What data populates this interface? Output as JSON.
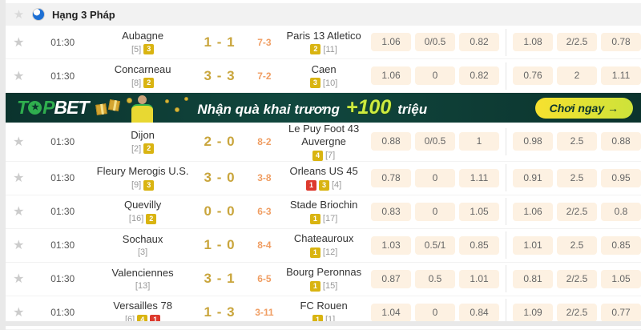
{
  "header": {
    "title": "Hạng 3 Pháp"
  },
  "banner": {
    "logo_t": "T",
    "logo_p": "P",
    "logo_bet": "BET",
    "logo_star": "★",
    "message": "Nhận quà khai trương",
    "highlight": "+100",
    "unit": "triệu",
    "cta": "Chơi ngay →"
  },
  "colors": {
    "score": "#c9a53c",
    "corner": "#f09e63",
    "odd_bg": "#fdf1e2",
    "badge_yellow": "#d9b411",
    "badge_red": "#dd3a2e",
    "banner_bg": "#0d3a33",
    "banner_green": "#2fae4e",
    "banner_lime": "#cdeb3f"
  },
  "matches": [
    {
      "time": "01:30",
      "home": {
        "name": "Aubagne",
        "sub": [
          {
            "type": "rank",
            "text": "[5]"
          },
          {
            "type": "badge",
            "color": "yellow",
            "text": "3"
          }
        ]
      },
      "score": "1 - 1",
      "corner": "7-3",
      "away": {
        "name": "Paris 13 Atletico",
        "sub": [
          {
            "type": "badge",
            "color": "yellow",
            "text": "2"
          },
          {
            "type": "rank",
            "text": "[11]"
          }
        ]
      },
      "odds": [
        "1.06",
        "0/0.5",
        "0.82",
        "1.08",
        "2/2.5",
        "0.78"
      ]
    },
    {
      "time": "01:30",
      "home": {
        "name": "Concarneau",
        "sub": [
          {
            "type": "rank",
            "text": "[8]"
          },
          {
            "type": "badge",
            "color": "yellow",
            "text": "2"
          }
        ]
      },
      "score": "3 - 3",
      "corner": "7-2",
      "away": {
        "name": "Caen",
        "sub": [
          {
            "type": "badge",
            "color": "yellow",
            "text": "3"
          },
          {
            "type": "rank",
            "text": "[10]"
          }
        ]
      },
      "odds": [
        "1.06",
        "0",
        "0.82",
        "0.76",
        "2",
        "1.11"
      ]
    },
    {
      "time": "01:30",
      "home": {
        "name": "Dijon",
        "sub": [
          {
            "type": "rank",
            "text": "[2]"
          },
          {
            "type": "badge",
            "color": "yellow",
            "text": "2"
          }
        ]
      },
      "score": "2 - 0",
      "corner": "8-2",
      "away": {
        "name": "Le Puy Foot 43 Auvergne",
        "sub": [
          {
            "type": "badge",
            "color": "yellow",
            "text": "4"
          },
          {
            "type": "rank",
            "text": "[7]"
          }
        ]
      },
      "odds": [
        "0.88",
        "0/0.5",
        "1",
        "0.98",
        "2.5",
        "0.88"
      ]
    },
    {
      "time": "01:30",
      "home": {
        "name": "Fleury Merogis U.S.",
        "sub": [
          {
            "type": "rank",
            "text": "[9]"
          },
          {
            "type": "badge",
            "color": "yellow",
            "text": "3"
          }
        ]
      },
      "score": "3 - 0",
      "corner": "3-8",
      "away": {
        "name": "Orleans US 45",
        "sub": [
          {
            "type": "badge",
            "color": "red",
            "text": "1"
          },
          {
            "type": "badge",
            "color": "yellow",
            "text": "3"
          },
          {
            "type": "rank",
            "text": "[4]"
          }
        ]
      },
      "odds": [
        "0.78",
        "0",
        "1.11",
        "0.91",
        "2.5",
        "0.95"
      ]
    },
    {
      "time": "01:30",
      "home": {
        "name": "Quevilly",
        "sub": [
          {
            "type": "rank",
            "text": "[16]"
          },
          {
            "type": "badge",
            "color": "yellow",
            "text": "2"
          }
        ]
      },
      "score": "0 - 0",
      "corner": "6-3",
      "away": {
        "name": "Stade Briochin",
        "sub": [
          {
            "type": "badge",
            "color": "yellow",
            "text": "1"
          },
          {
            "type": "rank",
            "text": "[17]"
          }
        ]
      },
      "odds": [
        "0.83",
        "0",
        "1.05",
        "1.06",
        "2/2.5",
        "0.8"
      ]
    },
    {
      "time": "01:30",
      "home": {
        "name": "Sochaux",
        "sub": [
          {
            "type": "rank",
            "text": "[3]"
          }
        ]
      },
      "score": "1 - 0",
      "corner": "8-4",
      "away": {
        "name": "Chateauroux",
        "sub": [
          {
            "type": "badge",
            "color": "yellow",
            "text": "1"
          },
          {
            "type": "rank",
            "text": "[12]"
          }
        ]
      },
      "odds": [
        "1.03",
        "0.5/1",
        "0.85",
        "1.01",
        "2.5",
        "0.85"
      ]
    },
    {
      "time": "01:30",
      "home": {
        "name": "Valenciennes",
        "sub": [
          {
            "type": "rank",
            "text": "[13]"
          }
        ]
      },
      "score": "3 - 1",
      "corner": "6-5",
      "away": {
        "name": "Bourg Peronnas",
        "sub": [
          {
            "type": "badge",
            "color": "yellow",
            "text": "1"
          },
          {
            "type": "rank",
            "text": "[15]"
          }
        ]
      },
      "odds": [
        "0.87",
        "0.5",
        "1.01",
        "0.81",
        "2/2.5",
        "1.05"
      ]
    },
    {
      "time": "01:30",
      "home": {
        "name": "Versailles 78",
        "sub": [
          {
            "type": "rank",
            "text": "[6]"
          },
          {
            "type": "badge",
            "color": "yellow",
            "text": "4"
          },
          {
            "type": "badge",
            "color": "red",
            "text": "1"
          }
        ]
      },
      "score": "1 - 3",
      "corner": "3-11",
      "away": {
        "name": "FC Rouen",
        "sub": [
          {
            "type": "badge",
            "color": "yellow",
            "text": "1"
          },
          {
            "type": "rank",
            "text": "[1]"
          }
        ]
      },
      "odds": [
        "1.04",
        "0",
        "0.84",
        "1.09",
        "2/2.5",
        "0.77"
      ]
    }
  ]
}
